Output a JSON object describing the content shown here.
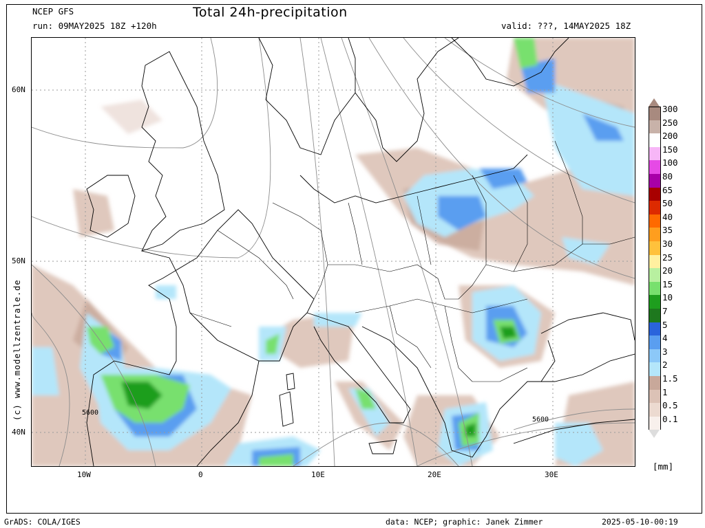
{
  "header": {
    "model": "NCEP GFS",
    "run": "run: 09MAY2025 18Z +120h",
    "title": "Total 24h-precipitation",
    "valid": "valid: ???, 14MAY2025 18Z"
  },
  "map": {
    "lat_labels": [
      "60N",
      "50N",
      "40N"
    ],
    "lon_labels": [
      "10W",
      "0",
      "10E",
      "20E",
      "30E"
    ],
    "contour_labels": [
      "5600",
      "5600"
    ],
    "side_credit": "(c) www.modellzentrale.de"
  },
  "legend": {
    "labels": [
      "300",
      "250",
      "200",
      "150",
      "100",
      "80",
      "65",
      "50",
      "40",
      "35",
      "30",
      "25",
      "20",
      "15",
      "10",
      "7",
      "5",
      "4",
      "3",
      "2",
      "1.5",
      "1",
      "0.5",
      "0.1"
    ],
    "colors": [
      "#a88a7f",
      "#c8b2a9",
      "#ffffff",
      "#f7b6f7",
      "#e64ae6",
      "#a800a8",
      "#a80000",
      "#dd2a00",
      "#ff6a00",
      "#ff9e1e",
      "#ffc13c",
      "#fff0a0",
      "#b8f0a0",
      "#78e06e",
      "#1e9e1e",
      "#1e781e",
      "#2a64dc",
      "#5a9ef0",
      "#8cc8f8",
      "#b4e6fa",
      "#c8a89a",
      "#dcc2b6",
      "#ecdad0",
      "#f8f0ec"
    ],
    "unit": "[mm]"
  },
  "footer": {
    "left": "GrADS: COLA/IGES",
    "middle": "data: NCEP; graphic: Janek Zimmer",
    "right": "2025-05-10-00:19"
  }
}
